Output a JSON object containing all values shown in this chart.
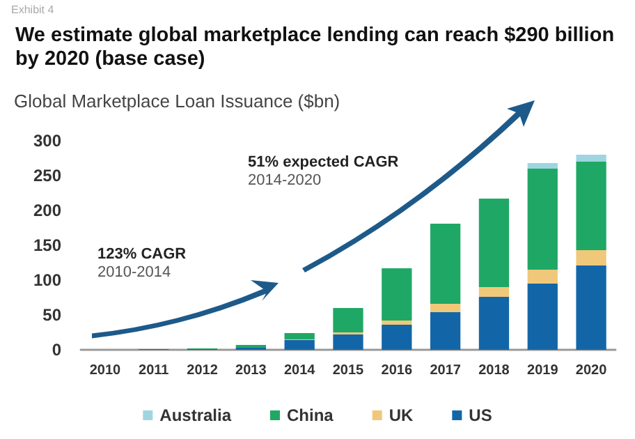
{
  "chart_data": {
    "type": "bar",
    "title": "We estimate global marketplace lending can reach $290 billion by 2020 (base case)",
    "ylabel": "Global Marketplace Loan Issuance ($bn)",
    "annotations": [
      "Exhibit 4",
      "123% CAGR",
      "2010-2014",
      "51% expected CAGR",
      "2014-2020"
    ],
    "categories": [
      "2010",
      "2011",
      "2012",
      "2013",
      "2014",
      "2015",
      "2016",
      "2017",
      "2018",
      "2019",
      "2020"
    ],
    "stacked": true,
    "series": [
      {
        "name": "US",
        "color": "#1266a8",
        "values": [
          0,
          1,
          1,
          3,
          14,
          22,
          36,
          54,
          76,
          95,
          121
        ]
      },
      {
        "name": "UK",
        "color": "#f0c87a",
        "values": [
          0,
          0,
          0,
          0,
          1,
          3,
          6,
          12,
          14,
          20,
          22
        ]
      },
      {
        "name": "China",
        "color": "#1fa865",
        "values": [
          0,
          0,
          1,
          4,
          9,
          35,
          75,
          115,
          127,
          145,
          127
        ]
      },
      {
        "name": "Australia",
        "color": "#9fd5e0",
        "values": [
          0,
          0,
          0,
          0,
          0,
          0,
          0,
          0,
          0,
          8,
          10
        ]
      }
    ],
    "ylim": [
      0,
      300
    ],
    "yticks": [
      0,
      50,
      100,
      150,
      200,
      250,
      300
    ],
    "grid": false,
    "legend": "bottom"
  }
}
